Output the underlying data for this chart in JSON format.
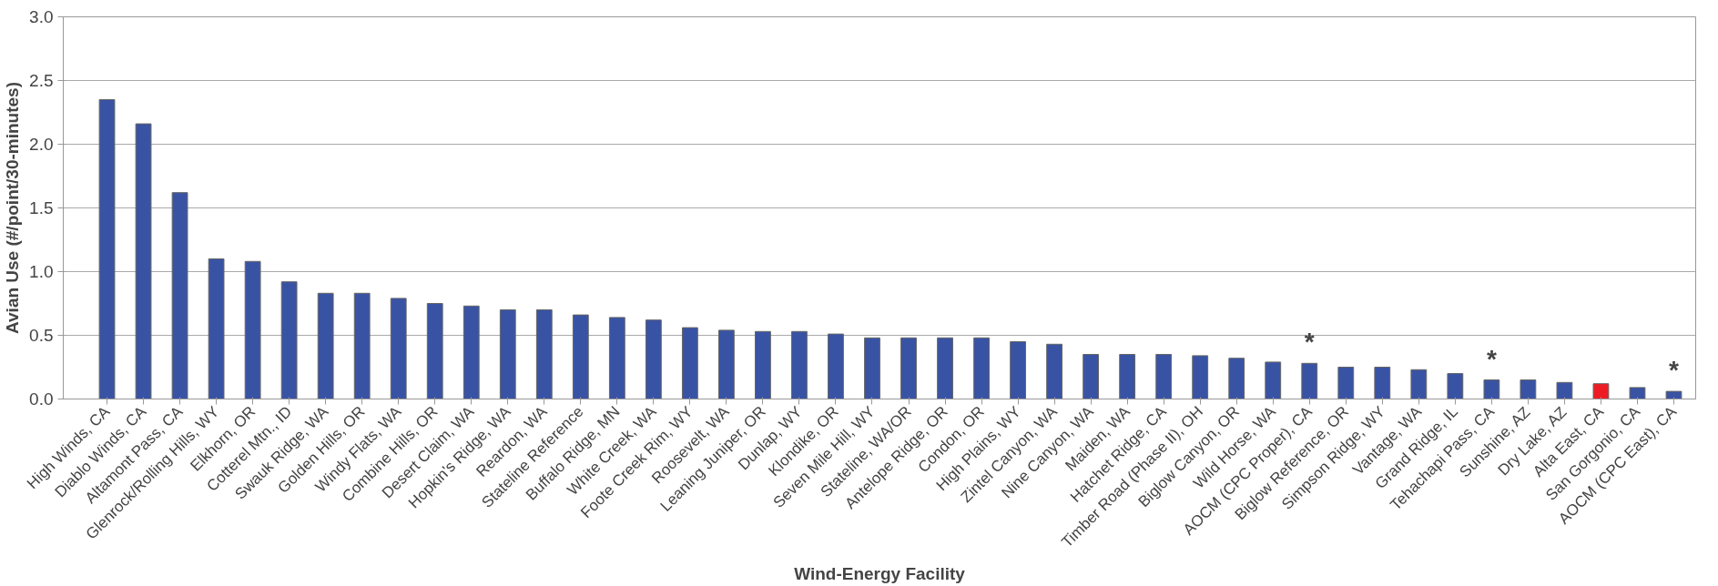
{
  "chart_data": {
    "type": "bar",
    "xlabel": "Wind-Energy Facility",
    "ylabel": "Avian Use (#/point/30-minutes)",
    "categories": [
      "High Winds, CA",
      "Diablo Winds, CA",
      "Altamont Pass, CA",
      "Glenrock/Rolling Hills, WY",
      "Elkhorn, OR",
      "Cotterel Mtn., ID",
      "Swauk Ridge, WA",
      "Golden Hills, OR",
      "Windy Flats, WA",
      "Combine Hills, OR",
      "Desert Claim, WA",
      "Hopkin's Ridge, WA",
      "Reardon, WA",
      "Stateline Reference",
      "Buffalo Ridge, MN",
      "White Creek, WA",
      "Foote Creek Rim, WY",
      "Roosevelt, WA",
      "Leaning Juniper, OR",
      "Dunlap, WY",
      "Klondike, OR",
      "Seven Mile Hill, WY",
      "Stateline, WA/OR",
      "Antelope Ridge, OR",
      "Condon, OR",
      "High Plains, WY",
      "Zintel Canyon, WA",
      "Nine Canyon, WA",
      "Maiden, WA",
      "Hatchet Ridge, CA",
      "Timber Road (Phase II), OH",
      "Biglow Canyon, OR",
      "Wild Horse, WA",
      "AOCM (CPC Proper), CA",
      "Biglow Reference, OR",
      "Simpson Ridge, WY",
      "Vantage, WA",
      "Grand Ridge, IL",
      "Tehachapi Pass, CA",
      "Sunshine, AZ",
      "Dry Lake, AZ",
      "Alta East, CA",
      "San Gorgonio, CA",
      "AOCM (CPC East), CA"
    ],
    "values": [
      2.35,
      2.16,
      1.62,
      1.1,
      1.08,
      0.92,
      0.83,
      0.83,
      0.79,
      0.75,
      0.73,
      0.7,
      0.7,
      0.66,
      0.64,
      0.62,
      0.56,
      0.54,
      0.53,
      0.53,
      0.51,
      0.48,
      0.48,
      0.48,
      0.48,
      0.45,
      0.43,
      0.35,
      0.35,
      0.35,
      0.34,
      0.32,
      0.29,
      0.28,
      0.25,
      0.25,
      0.23,
      0.2,
      0.15,
      0.15,
      0.13,
      0.12,
      0.09,
      0.06
    ],
    "colors": [
      "#3953a4",
      "#3953a4",
      "#3953a4",
      "#3953a4",
      "#3953a4",
      "#3953a4",
      "#3953a4",
      "#3953a4",
      "#3953a4",
      "#3953a4",
      "#3953a4",
      "#3953a4",
      "#3953a4",
      "#3953a4",
      "#3953a4",
      "#3953a4",
      "#3953a4",
      "#3953a4",
      "#3953a4",
      "#3953a4",
      "#3953a4",
      "#3953a4",
      "#3953a4",
      "#3953a4",
      "#3953a4",
      "#3953a4",
      "#3953a4",
      "#3953a4",
      "#3953a4",
      "#3953a4",
      "#3953a4",
      "#3953a4",
      "#3953a4",
      "#3953a4",
      "#3953a4",
      "#3953a4",
      "#3953a4",
      "#3953a4",
      "#3953a4",
      "#3953a4",
      "#3953a4",
      "#ed1c24",
      "#3953a4",
      "#3953a4"
    ],
    "annotations": [
      {
        "text": "*",
        "x": "AOCM (CPC Proper), CA",
        "y": 0.28
      },
      {
        "text": "*",
        "x": "Tehachapi Pass, CA",
        "y": 0.15
      },
      {
        "text": "*",
        "x": "AOCM (CPC East), CA",
        "y": 0.06
      }
    ],
    "ylim": [
      0,
      3.0
    ],
    "yticks": [
      {
        "value": 0,
        "label": "0.0"
      },
      {
        "value": 0.5,
        "label": "0.5"
      },
      {
        "value": 1,
        "label": "1.0"
      },
      {
        "value": 1.5,
        "label": "1.5"
      },
      {
        "value": 2,
        "label": "2.0"
      },
      {
        "value": 2.5,
        "label": "2.5"
      },
      {
        "value": 3,
        "label": "3.0"
      }
    ],
    "grid": "y"
  }
}
